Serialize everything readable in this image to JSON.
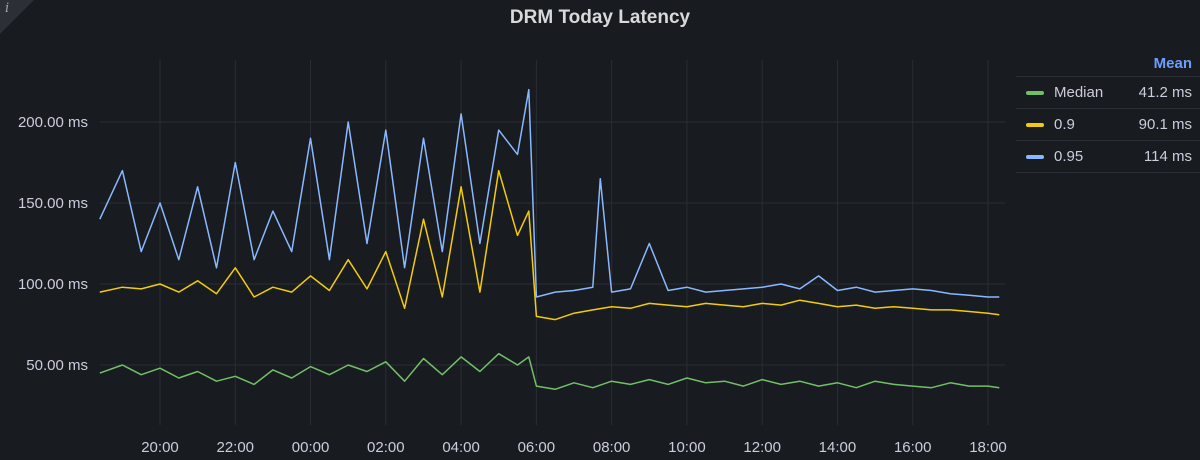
{
  "panel": {
    "title": "DRM Today Latency",
    "info_icon": "info-icon"
  },
  "legend": {
    "header": "Mean",
    "items": [
      {
        "name": "Median",
        "value": "41.2 ms",
        "color": "#73bf69"
      },
      {
        "name": "0.9",
        "value": "90.1 ms",
        "color": "#f2cc0c"
      },
      {
        "name": "0.95",
        "value": "114 ms",
        "color": "#8ab8ff"
      }
    ]
  },
  "chart_data": {
    "type": "line",
    "title": "DRM Today Latency",
    "xlabel": "",
    "ylabel": "",
    "x_ticks": [
      "20:00",
      "22:00",
      "00:00",
      "02:00",
      "04:00",
      "06:00",
      "08:00",
      "10:00",
      "12:00",
      "14:00",
      "16:00",
      "18:00"
    ],
    "y_ticks": [
      {
        "value": 50,
        "label": "50.00 ms"
      },
      {
        "value": 100,
        "label": "100.00 ms"
      },
      {
        "value": 150,
        "label": "150.00 ms"
      },
      {
        "value": 200,
        "label": "200.00 ms"
      }
    ],
    "x_range_hours": [
      18.4,
      42.3
    ],
    "ylim": [
      25,
      230
    ],
    "grid": true,
    "legend_position": "right",
    "series": [
      {
        "name": "Median",
        "color": "#73bf69",
        "x": [
          18.4,
          19,
          19.5,
          20,
          20.5,
          21,
          21.5,
          22,
          22.5,
          23,
          23.5,
          24,
          24.5,
          25,
          25.5,
          26,
          26.5,
          27,
          27.5,
          28,
          28.5,
          29,
          29.5,
          29.8,
          30,
          30.5,
          31,
          31.5,
          32,
          32.5,
          33,
          33.5,
          34,
          34.5,
          35,
          35.5,
          36,
          36.5,
          37,
          37.5,
          38,
          38.5,
          39,
          39.5,
          40,
          40.5,
          41,
          41.5,
          42,
          42.3
        ],
        "values": [
          45,
          50,
          44,
          48,
          42,
          46,
          40,
          43,
          38,
          47,
          42,
          49,
          44,
          50,
          46,
          52,
          40,
          54,
          44,
          55,
          46,
          57,
          50,
          55,
          37,
          35,
          39,
          36,
          40,
          38,
          41,
          38,
          42,
          39,
          40,
          37,
          41,
          38,
          40,
          37,
          39,
          36,
          40,
          38,
          37,
          36,
          39,
          37,
          37,
          36
        ]
      },
      {
        "name": "0.9",
        "color": "#f2cc0c",
        "x": [
          18.4,
          19,
          19.5,
          20,
          20.5,
          21,
          21.5,
          22,
          22.5,
          23,
          23.5,
          24,
          24.5,
          25,
          25.5,
          26,
          26.5,
          27,
          27.5,
          28,
          28.5,
          29,
          29.5,
          29.8,
          30,
          30.5,
          31,
          31.5,
          32,
          32.5,
          33,
          33.5,
          34,
          34.5,
          35,
          35.5,
          36,
          36.5,
          37,
          37.5,
          38,
          38.5,
          39,
          39.5,
          40,
          40.5,
          41,
          41.5,
          42,
          42.3
        ],
        "values": [
          95,
          98,
          97,
          100,
          95,
          102,
          94,
          110,
          92,
          98,
          95,
          105,
          96,
          115,
          97,
          120,
          85,
          140,
          92,
          160,
          95,
          170,
          130,
          145,
          80,
          78,
          82,
          84,
          86,
          85,
          88,
          87,
          86,
          88,
          87,
          86,
          88,
          87,
          90,
          88,
          86,
          87,
          85,
          86,
          85,
          84,
          84,
          83,
          82,
          81
        ]
      },
      {
        "name": "0.95",
        "color": "#8ab8ff",
        "x": [
          18.4,
          19,
          19.5,
          20,
          20.5,
          21,
          21.5,
          22,
          22.5,
          23,
          23.5,
          24,
          24.5,
          25,
          25.5,
          26,
          26.5,
          27,
          27.5,
          28,
          28.5,
          29,
          29.5,
          29.8,
          30,
          30.5,
          31,
          31.5,
          31.7,
          32,
          32.5,
          33,
          33.5,
          34,
          34.5,
          35,
          35.5,
          36,
          36.5,
          37,
          37.5,
          38,
          38.5,
          39,
          39.5,
          40,
          40.5,
          41,
          41.5,
          42,
          42.3
        ],
        "values": [
          140,
          170,
          120,
          150,
          115,
          160,
          110,
          175,
          115,
          145,
          120,
          190,
          115,
          200,
          125,
          195,
          110,
          190,
          120,
          205,
          125,
          195,
          180,
          220,
          92,
          95,
          96,
          98,
          165,
          95,
          97,
          125,
          96,
          98,
          95,
          96,
          97,
          98,
          100,
          97,
          105,
          96,
          98,
          95,
          96,
          97,
          96,
          94,
          93,
          92,
          92
        ]
      }
    ]
  }
}
